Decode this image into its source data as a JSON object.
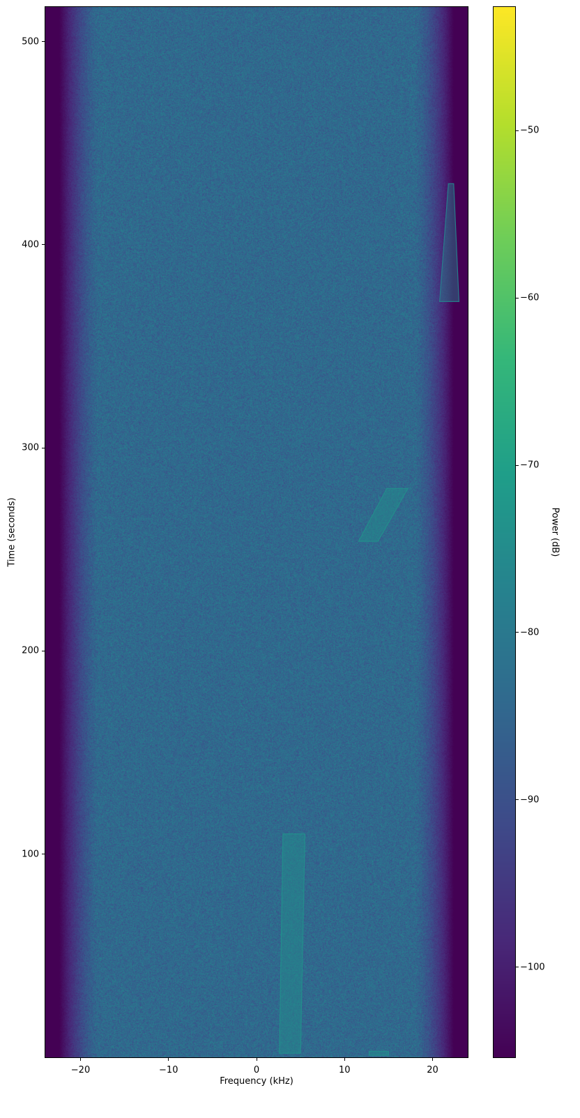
{
  "chart_data": {
    "type": "heatmap",
    "title": "",
    "xlabel": "Frequency (kHz)",
    "ylabel": "Time (seconds)",
    "xlim": [
      -24,
      24
    ],
    "ylim": [
      0,
      517
    ],
    "xticks": [
      -20,
      -10,
      0,
      10,
      20
    ],
    "xtick_labels": [
      "−20",
      "−10",
      "0",
      "10",
      "20"
    ],
    "yticks": [
      100,
      200,
      300,
      400,
      500
    ],
    "ytick_labels": [
      "100",
      "200",
      "300",
      "400",
      "500"
    ],
    "colorbar": {
      "label": "Power (dB)",
      "colormap": "viridis",
      "range": [
        -105.4,
        -42.6
      ],
      "ticks": [
        -50,
        -60,
        -70,
        -80,
        -90,
        -100
      ],
      "tick_labels": [
        "−50",
        "−60",
        "−70",
        "−80",
        "−90",
        "−100"
      ]
    },
    "noise_floor_db": -84,
    "edge_rolloff_khz": [
      18,
      22.5
    ],
    "edge_floor_db": -106,
    "signals": [
      {
        "t_start": 2,
        "t_end": 110,
        "f_start": [
          2.6,
          5.0
        ],
        "f_end": [
          3.0,
          5.5
        ],
        "power_db": -74
      },
      {
        "t_start": 254,
        "t_end": 280,
        "f_start": [
          11.6,
          13.8
        ],
        "f_end": [
          14.8,
          17.2
        ],
        "power_db": -74
      },
      {
        "t_start": 372,
        "t_end": 430,
        "f_start": [
          20.8,
          23.0
        ],
        "f_end": [
          21.8,
          22.4
        ],
        "power_db": -77
      },
      {
        "t_start": 1,
        "t_end": 3,
        "f_start": [
          12.8,
          15.0
        ],
        "f_end": [
          12.8,
          15.0
        ],
        "power_db": -74
      }
    ],
    "grid": false
  }
}
